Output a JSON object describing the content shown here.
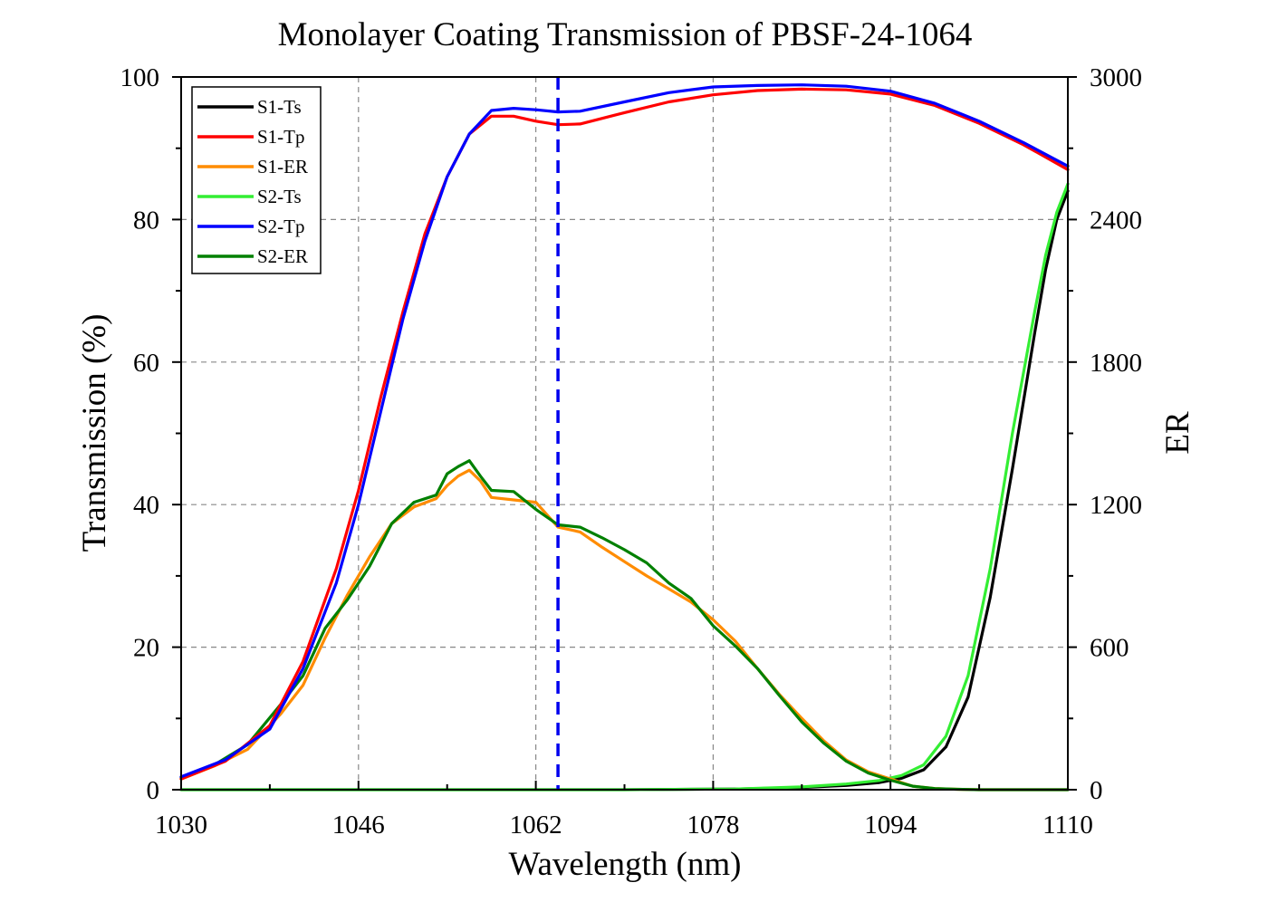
{
  "chart_data": {
    "type": "line",
    "title": "Monolayer Coating Transmission of PBSF-24-1064",
    "xlabel": "Wavelength (nm)",
    "ylabel": "Transmission (%)",
    "y2label": "ER",
    "xlim": [
      1030,
      1110
    ],
    "ylim": [
      0,
      100
    ],
    "y2lim": [
      0,
      3000
    ],
    "xticks": [
      "1030",
      "1046",
      "1062",
      "1078",
      "1094",
      "1110"
    ],
    "yticks": [
      "0",
      "20",
      "40",
      "60",
      "80",
      "100"
    ],
    "y2ticks": [
      "0",
      "600",
      "1200",
      "1800",
      "2400",
      "3000"
    ],
    "grid": true,
    "legend_position": "top-left",
    "reference_line_x": 1064,
    "series": [
      {
        "name": "S1-Ts",
        "axis": "left",
        "color": "#000000",
        "x": [
          1030,
          1070,
          1080,
          1086,
          1090,
          1093,
          1095,
          1097,
          1099,
          1101,
          1103,
          1105,
          1107,
          1108,
          1109,
          1110
        ],
        "y": [
          0,
          0,
          0.1,
          0.3,
          0.6,
          1.0,
          1.6,
          2.8,
          6.0,
          13,
          27,
          45,
          64,
          73,
          80,
          84
        ]
      },
      {
        "name": "S1-Tp",
        "axis": "left",
        "color": "#ff0000",
        "x": [
          1030,
          1034,
          1038,
          1041,
          1044,
          1046,
          1048,
          1050,
          1052,
          1054,
          1056,
          1058,
          1060,
          1062,
          1064,
          1066,
          1070,
          1074,
          1078,
          1082,
          1086,
          1090,
          1094,
          1098,
          1102,
          1106,
          1110
        ],
        "y": [
          1.5,
          4.0,
          9.0,
          18,
          31,
          42,
          55,
          67,
          78,
          86,
          92,
          94.5,
          94.5,
          93.8,
          93.3,
          93.4,
          95,
          96.5,
          97.5,
          98.1,
          98.3,
          98.2,
          97.6,
          96,
          93.5,
          90.5,
          87
        ]
      },
      {
        "name": "S1-ER",
        "axis": "right",
        "color": "#ff8c00",
        "x": [
          1030,
          1033,
          1036,
          1039,
          1041,
          1043,
          1045,
          1047,
          1049,
          1051,
          1053,
          1054,
          1055,
          1056,
          1057,
          1058,
          1060,
          1062,
          1064,
          1066,
          1068,
          1070,
          1072,
          1074,
          1076,
          1078,
          1080,
          1082,
          1084,
          1086,
          1088,
          1090,
          1092,
          1094,
          1096,
          1098,
          1100,
          1102,
          1104,
          1106,
          1108,
          1110
        ],
        "y": [
          45,
          100,
          170,
          320,
          440,
          640,
          820,
          980,
          1120,
          1190,
          1225,
          1280,
          1320,
          1345,
          1300,
          1230,
          1220,
          1210,
          1105,
          1085,
          1020,
          960,
          900,
          845,
          790,
          715,
          625,
          510,
          400,
          300,
          205,
          125,
          75,
          45,
          15,
          5,
          2,
          0,
          0,
          0,
          0,
          0
        ]
      },
      {
        "name": "S2-Ts",
        "axis": "left",
        "color": "#33ee33",
        "x": [
          1030,
          1070,
          1080,
          1086,
          1090,
          1093,
          1095,
          1097,
          1099,
          1101,
          1103,
          1105,
          1107,
          1108,
          1109,
          1110
        ],
        "y": [
          0,
          0,
          0.1,
          0.4,
          0.8,
          1.3,
          2.0,
          3.5,
          7.5,
          16,
          31,
          50,
          67,
          75,
          81,
          85
        ]
      },
      {
        "name": "S2-Tp",
        "axis": "left",
        "color": "#0000ff",
        "x": [
          1030,
          1034,
          1038,
          1041,
          1044,
          1046,
          1048,
          1050,
          1052,
          1054,
          1056,
          1058,
          1060,
          1062,
          1064,
          1066,
          1070,
          1074,
          1078,
          1082,
          1086,
          1090,
          1094,
          1098,
          1102,
          1106,
          1110
        ],
        "y": [
          1.8,
          4.2,
          8.5,
          17,
          29,
          40,
          53,
          66,
          77,
          86,
          92,
          95.3,
          95.6,
          95.4,
          95.1,
          95.2,
          96.5,
          97.8,
          98.6,
          98.8,
          98.9,
          98.7,
          98,
          96.3,
          93.8,
          90.8,
          87.5
        ]
      },
      {
        "name": "S2-ER",
        "axis": "right",
        "color": "#008000",
        "x": [
          1030,
          1033,
          1036,
          1039,
          1041,
          1043,
          1045,
          1047,
          1049,
          1051,
          1053,
          1054,
          1055,
          1056,
          1057,
          1058,
          1060,
          1062,
          1064,
          1066,
          1068,
          1070,
          1072,
          1074,
          1076,
          1078,
          1080,
          1082,
          1084,
          1086,
          1088,
          1090,
          1092,
          1094,
          1096,
          1098,
          1100,
          1102,
          1104,
          1106,
          1108,
          1110
        ],
        "y": [
          50,
          105,
          190,
          360,
          480,
          680,
          800,
          940,
          1120,
          1210,
          1240,
          1330,
          1360,
          1385,
          1320,
          1260,
          1255,
          1180,
          1115,
          1105,
          1060,
          1010,
          955,
          870,
          805,
          690,
          605,
          510,
          395,
          285,
          195,
          120,
          70,
          40,
          15,
          5,
          2,
          0,
          0,
          0,
          0,
          0
        ]
      }
    ]
  }
}
